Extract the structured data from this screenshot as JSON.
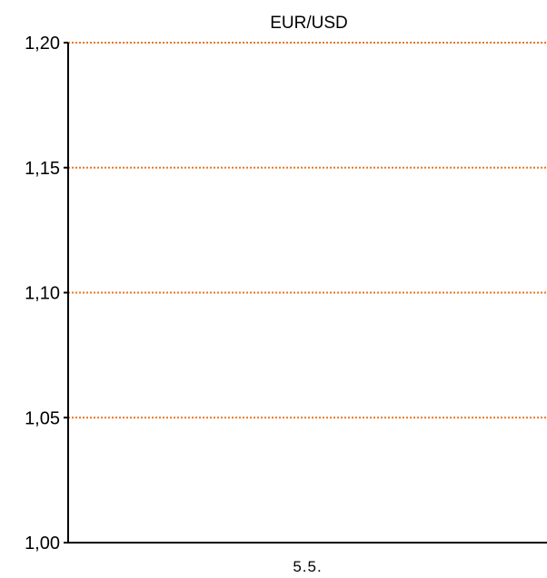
{
  "chart_data": {
    "type": "line",
    "title": "EUR/USD",
    "xlabel": "",
    "ylabel": "",
    "categories": [
      "5.5."
    ],
    "series": [],
    "ylim": [
      1.0,
      1.2
    ],
    "yticks": [
      "1,00",
      "1,05",
      "1,10",
      "1,15",
      "1,20"
    ],
    "ytick_values": [
      1.0,
      1.05,
      1.1,
      1.15,
      1.2
    ],
    "grid": true,
    "grid_style": "dotted",
    "grid_color": "#E87722",
    "axis_color": "#000000"
  }
}
